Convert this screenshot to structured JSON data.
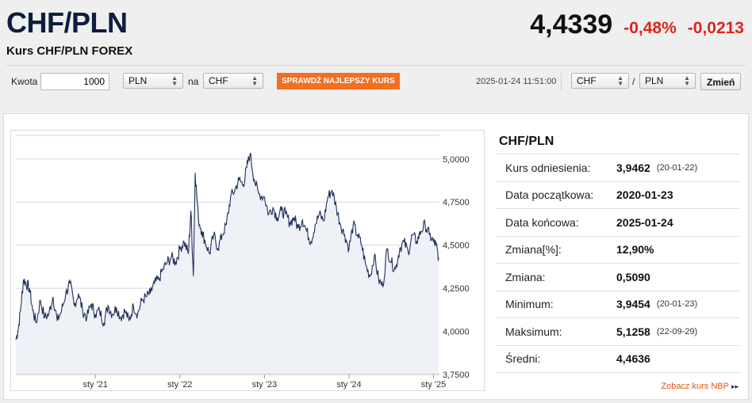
{
  "header": {
    "pair": "CHF/PLN",
    "subtitle": "Kurs CHF/PLN FOREX",
    "rate": "4,4339",
    "change_pct": "-0,48%",
    "change_abs": "-0,0213"
  },
  "toolbar": {
    "amount_label": "Kwota",
    "amount_value": "1000",
    "from_currency": "PLN",
    "to_label": "na",
    "to_currency": "CHF",
    "best_rate_button": "SPRAWDŹ NAJLEPSZY KURS",
    "timestamp": "2025-01-24 11:51:00",
    "base_select": "CHF",
    "slash": "/",
    "quote_select": "PLN",
    "change_button": "Zmień"
  },
  "stats": {
    "title": "CHF/PLN",
    "rows": [
      {
        "label": "Kurs odniesienia:",
        "value": "3,9462",
        "date": "(20-01-22)"
      },
      {
        "label": "Data początkowa:",
        "value": "2020-01-23",
        "date": ""
      },
      {
        "label": "Data końcowa:",
        "value": "2025-01-24",
        "date": ""
      },
      {
        "label": "Zmiana[%]:",
        "value": "12,90%",
        "date": ""
      },
      {
        "label": "Zmiana:",
        "value": "0,5090",
        "date": ""
      },
      {
        "label": "Minimum:",
        "value": "3,9454",
        "date": "(20-01-23)"
      },
      {
        "label": "Maksimum:",
        "value": "5,1258",
        "date": "(22-09-29)"
      },
      {
        "label": "Średni:",
        "value": "4,4636",
        "date": ""
      }
    ],
    "nbp_link": "Zobacz kurs NBP",
    "nbp_arrows": "▸▸"
  },
  "colors": {
    "accent_orange": "#f36f21",
    "negative_red": "#e2231a",
    "title_navy": "#0f1e3d",
    "line_navy": "#1f2f5c",
    "area_fill": "#eef1f5"
  },
  "chart_data": {
    "type": "area",
    "ylim": [
      3.75,
      5.1
    ],
    "y_ticks": [
      3.75,
      4.0,
      4.25,
      4.5,
      4.75,
      5.0
    ],
    "y_tick_labels": [
      "3,7500",
      "4,0000",
      "4,2500",
      "4,5000",
      "4,7500",
      "5,0000"
    ],
    "x_ticks": [
      2021.0,
      2022.0,
      2023.0,
      2024.0,
      2025.0
    ],
    "x_tick_labels": [
      "sty '21",
      "sty '22",
      "sty '23",
      "sty '24",
      "sty '25"
    ],
    "xlim": [
      2020.06,
      2025.07
    ],
    "grid": "horizontal",
    "series": [
      {
        "x": [
          2020.06,
          2020.09,
          2020.12,
          2020.15,
          2020.18,
          2020.22,
          2020.26,
          2020.3,
          2020.35,
          2020.4,
          2020.45,
          2020.5,
          2020.55,
          2020.6,
          2020.65,
          2020.7,
          2020.75,
          2020.8,
          2020.85,
          2020.9,
          2020.95,
          2021.0,
          2021.05,
          2021.1,
          2021.15,
          2021.2,
          2021.25,
          2021.3,
          2021.35,
          2021.4,
          2021.45,
          2021.5,
          2021.55,
          2021.6,
          2021.65,
          2021.7,
          2021.75,
          2021.8,
          2021.85,
          2021.9,
          2021.95,
          2022.0,
          2022.05,
          2022.1,
          2022.13,
          2022.16,
          2022.18,
          2022.22,
          2022.26,
          2022.3,
          2022.35,
          2022.4,
          2022.45,
          2022.5,
          2022.55,
          2022.6,
          2022.65,
          2022.7,
          2022.75,
          2022.79,
          2022.83,
          2022.88,
          2022.93,
          2023.0,
          2023.05,
          2023.1,
          2023.15,
          2023.2,
          2023.25,
          2023.3,
          2023.35,
          2023.4,
          2023.45,
          2023.5,
          2023.55,
          2023.6,
          2023.65,
          2023.7,
          2023.75,
          2023.8,
          2023.85,
          2023.9,
          2023.95,
          2024.0,
          2024.05,
          2024.1,
          2024.15,
          2024.2,
          2024.25,
          2024.3,
          2024.35,
          2024.4,
          2024.45,
          2024.5,
          2024.55,
          2024.6,
          2024.65,
          2024.7,
          2024.75,
          2024.8,
          2024.85,
          2024.9,
          2024.95,
          2025.0,
          2025.03,
          2025.06
        ],
        "y": [
          3.95,
          4.02,
          4.15,
          4.3,
          4.28,
          4.25,
          4.12,
          4.05,
          4.18,
          4.08,
          4.1,
          4.2,
          4.06,
          4.12,
          4.22,
          4.28,
          4.15,
          4.22,
          4.12,
          4.08,
          4.16,
          4.1,
          4.12,
          4.05,
          4.15,
          4.1,
          4.14,
          4.08,
          4.12,
          4.06,
          4.15,
          4.1,
          4.18,
          4.2,
          4.22,
          4.28,
          4.3,
          4.36,
          4.4,
          4.43,
          4.4,
          4.48,
          4.52,
          4.45,
          4.7,
          4.32,
          4.92,
          4.65,
          4.58,
          4.52,
          4.45,
          4.56,
          4.48,
          4.56,
          4.62,
          4.78,
          4.82,
          4.88,
          4.85,
          4.95,
          5.03,
          4.88,
          4.8,
          4.78,
          4.68,
          4.72,
          4.66,
          4.7,
          4.68,
          4.63,
          4.66,
          4.6,
          4.65,
          4.58,
          4.52,
          4.62,
          4.68,
          4.64,
          4.78,
          4.82,
          4.72,
          4.62,
          4.56,
          4.48,
          4.62,
          4.56,
          4.5,
          4.38,
          4.32,
          4.44,
          4.3,
          4.26,
          4.48,
          4.4,
          4.36,
          4.48,
          4.52,
          4.46,
          4.56,
          4.52,
          4.58,
          4.62,
          4.56,
          4.52,
          4.5,
          4.43
        ]
      }
    ]
  }
}
